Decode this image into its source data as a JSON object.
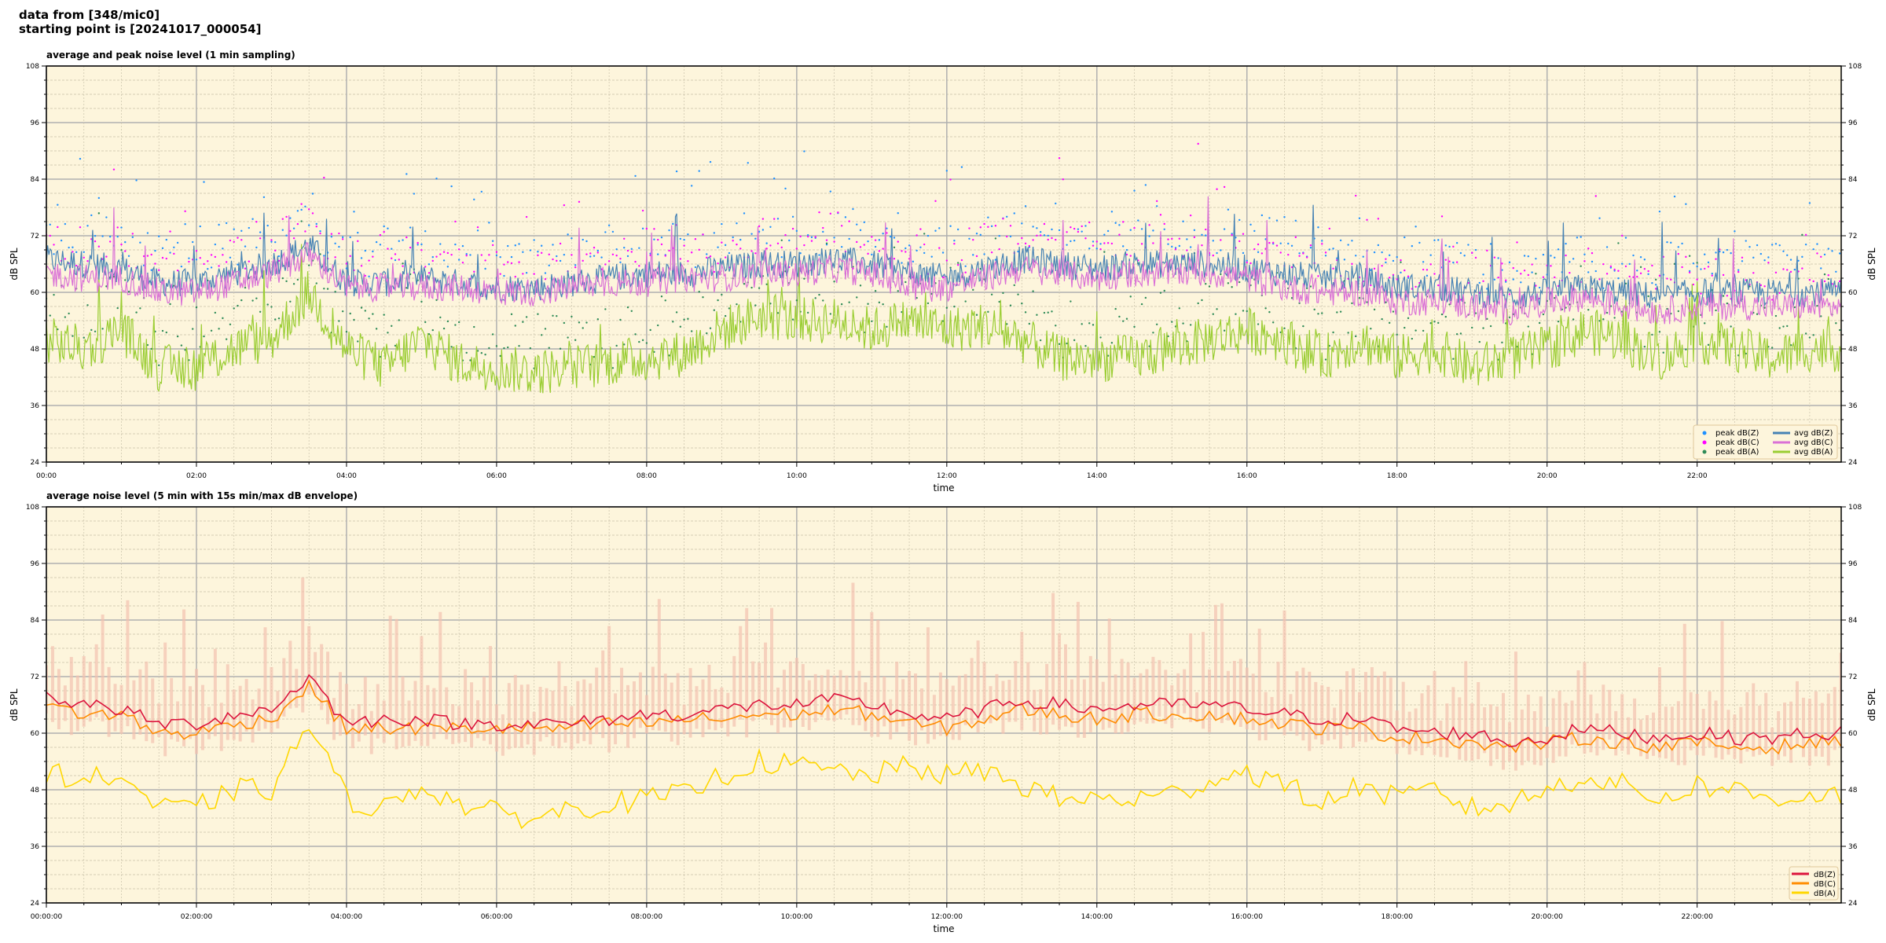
{
  "header": {
    "line1": "data from [348/mic0]",
    "line2": "starting point is [20241017_000054]"
  },
  "colors": {
    "plot_bg": "#fdf5dc",
    "peak_z": "#1e90ff",
    "peak_c": "#ff00ff",
    "peak_a": "#2e8b57",
    "avg_z": "#4682b4",
    "avg_c": "#da70d6",
    "avg_a": "#9acd32",
    "z": "#dc143c",
    "c": "#ff8c00",
    "a": "#ffd700",
    "envelope": "#f4c2b0"
  },
  "chart_data": [
    {
      "type": "line",
      "title": "average and peak noise level (1 min sampling)",
      "xlabel": "time",
      "ylabel": "dB SPL",
      "ylim": [
        24,
        108
      ],
      "xlim_hours": [
        0,
        23.92
      ],
      "yticks": [
        "24",
        "36",
        "48",
        "60",
        "72",
        "84",
        "96",
        "108"
      ],
      "xticks": [
        "00:00",
        "02:00",
        "04:00",
        "06:00",
        "08:00",
        "10:00",
        "12:00",
        "14:00",
        "16:00",
        "18:00",
        "20:00",
        "22:00"
      ],
      "grid": true,
      "legend": "bottom-right",
      "x_step_hours": 0.5,
      "series": [
        {
          "name": "peak dB(Z)",
          "kind": "points",
          "offset_of": "avg dB(Z)"
        },
        {
          "name": "peak dB(C)",
          "kind": "points",
          "offset_of": "avg dB(C)"
        },
        {
          "name": "peak dB(A)",
          "kind": "points",
          "offset_of": "avg dB(A)"
        },
        {
          "name": "avg dB(Z)",
          "kind": "line",
          "values": [
            67,
            66,
            65,
            62,
            62,
            64,
            66,
            70,
            62,
            62,
            63,
            62,
            61,
            61,
            62,
            63,
            64,
            64,
            65,
            66,
            66,
            67,
            66,
            64,
            63,
            65,
            67,
            66,
            65,
            66,
            66,
            66,
            65,
            64,
            63,
            63,
            61,
            61,
            60,
            59,
            60,
            61,
            60,
            59,
            60,
            60,
            60,
            60
          ]
        },
        {
          "name": "avg dB(C)",
          "kind": "line",
          "values": [
            64,
            63,
            63,
            60,
            60,
            62,
            64,
            68,
            61,
            61,
            61,
            61,
            60,
            60,
            61,
            62,
            62,
            63,
            63,
            64,
            64,
            65,
            64,
            61,
            61,
            63,
            65,
            64,
            63,
            64,
            64,
            64,
            63,
            61,
            60,
            60,
            58,
            58,
            57,
            56,
            58,
            59,
            57,
            56,
            57,
            57,
            57,
            57
          ]
        },
        {
          "name": "avg dB(A)",
          "kind": "line",
          "values": [
            50,
            48,
            52,
            44,
            44,
            48,
            50,
            60,
            48,
            44,
            50,
            45,
            44,
            43,
            44,
            45,
            46,
            47,
            52,
            55,
            54,
            54,
            52,
            54,
            52,
            53,
            50,
            46,
            46,
            46,
            48,
            50,
            52,
            50,
            46,
            50,
            46,
            48,
            44,
            46,
            48,
            52,
            50,
            46,
            50,
            48,
            46,
            48
          ]
        }
      ]
    },
    {
      "type": "line",
      "title": "average noise level (5 min with 15s min/max dB envelope)",
      "xlabel": "time",
      "ylabel": "dB SPL",
      "ylim": [
        24,
        108
      ],
      "xlim_hours": [
        0,
        23.92
      ],
      "yticks": [
        "24",
        "36",
        "48",
        "60",
        "72",
        "84",
        "96",
        "108"
      ],
      "xticks": [
        "00:00:00",
        "02:00:00",
        "04:00:00",
        "06:00:00",
        "08:00:00",
        "10:00:00",
        "12:00:00",
        "14:00:00",
        "16:00:00",
        "18:00:00",
        "20:00:00",
        "22:00:00"
      ],
      "grid": true,
      "legend": "bottom-right",
      "x_step_hours": 0.5,
      "series": [
        {
          "name": "dB(Z)",
          "values": [
            68,
            66,
            65,
            62,
            62,
            64,
            65,
            72,
            62,
            63,
            63,
            62,
            62,
            62,
            62,
            63,
            64,
            64,
            65,
            66,
            66,
            67,
            66,
            64,
            63,
            65,
            67,
            66,
            65,
            66,
            66,
            66,
            65,
            64,
            63,
            63,
            61,
            60,
            60,
            58,
            59,
            61,
            60,
            59,
            60,
            59,
            59,
            60
          ]
        },
        {
          "name": "dB(C)",
          "values": [
            66,
            64,
            64,
            60,
            60,
            62,
            63,
            70,
            61,
            61,
            61,
            61,
            61,
            61,
            61,
            62,
            62,
            63,
            63,
            64,
            64,
            65,
            64,
            62,
            61,
            63,
            65,
            64,
            63,
            64,
            64,
            64,
            63,
            62,
            61,
            61,
            59,
            59,
            58,
            57,
            58,
            59,
            58,
            57,
            58,
            57,
            57,
            58
          ]
        },
        {
          "name": "dB(A)",
          "values": [
            52,
            50,
            51,
            44,
            44,
            48,
            48,
            62,
            46,
            44,
            49,
            45,
            43,
            42,
            44,
            45,
            46,
            47,
            51,
            54,
            53,
            52,
            51,
            53,
            51,
            52,
            49,
            46,
            46,
            46,
            47,
            50,
            52,
            49,
            45,
            49,
            46,
            48,
            44,
            45,
            48,
            51,
            49,
            46,
            49,
            48,
            46,
            47
          ]
        }
      ]
    }
  ]
}
